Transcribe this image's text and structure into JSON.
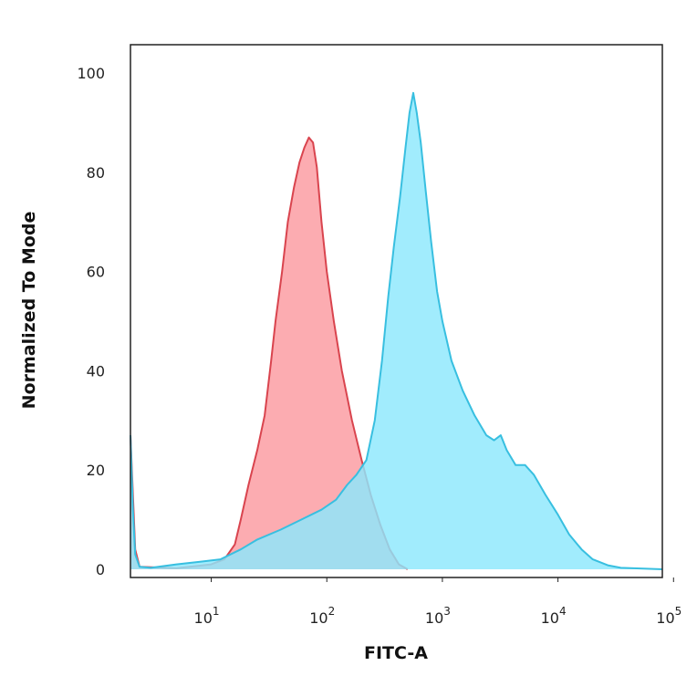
{
  "chart_data": {
    "type": "area",
    "title": "",
    "xlabel": "FITC-A",
    "ylabel": "Normalized To Mode",
    "x_scale": "log",
    "xlim": [
      2,
      80000
    ],
    "ylim": [
      0,
      100
    ],
    "grid": false,
    "legend": "none",
    "x_ticks": [
      {
        "value": 10,
        "base": "10",
        "exp": "1"
      },
      {
        "value": 100,
        "base": "10",
        "exp": "2"
      },
      {
        "value": 1000,
        "base": "10",
        "exp": "3"
      },
      {
        "value": 10000,
        "base": "10",
        "exp": "4"
      },
      {
        "value": 100000,
        "base": "10",
        "exp": "5"
      }
    ],
    "y_ticks": [
      {
        "value": 0,
        "label": "0"
      },
      {
        "value": 20,
        "label": "20"
      },
      {
        "value": 40,
        "label": "40"
      },
      {
        "value": 60,
        "label": "60"
      },
      {
        "value": 80,
        "label": "80"
      },
      {
        "value": 100,
        "label": "100"
      }
    ],
    "series": [
      {
        "fill": "#fb9aa0",
        "stroke": "#d9444e",
        "points": [
          [
            2.0,
            27
          ],
          [
            2.1,
            15
          ],
          [
            2.2,
            4
          ],
          [
            2.4,
            0.5
          ],
          [
            5,
            0.2
          ],
          [
            10,
            1
          ],
          [
            13,
            2
          ],
          [
            16,
            5
          ],
          [
            18,
            10
          ],
          [
            21,
            17
          ],
          [
            25,
            24
          ],
          [
            29,
            31
          ],
          [
            33,
            42
          ],
          [
            36,
            50
          ],
          [
            41,
            60
          ],
          [
            46,
            70
          ],
          [
            52,
            77
          ],
          [
            58,
            82
          ],
          [
            64,
            85
          ],
          [
            70,
            87
          ],
          [
            76,
            86
          ],
          [
            82,
            81
          ],
          [
            90,
            70
          ],
          [
            100,
            60
          ],
          [
            115,
            50
          ],
          [
            135,
            40
          ],
          [
            165,
            30
          ],
          [
            200,
            22
          ],
          [
            240,
            15
          ],
          [
            290,
            9
          ],
          [
            350,
            4
          ],
          [
            420,
            1
          ],
          [
            500,
            0
          ]
        ]
      },
      {
        "fill": "#8ce8fd",
        "stroke": "#38bfe0",
        "points": [
          [
            2.0,
            27
          ],
          [
            2.1,
            12
          ],
          [
            2.2,
            3
          ],
          [
            2.4,
            0.5
          ],
          [
            3,
            0.3
          ],
          [
            5,
            1
          ],
          [
            8,
            1.5
          ],
          [
            12,
            2
          ],
          [
            18,
            4
          ],
          [
            25,
            6
          ],
          [
            40,
            8
          ],
          [
            60,
            10
          ],
          [
            90,
            12
          ],
          [
            120,
            14
          ],
          [
            150,
            17
          ],
          [
            180,
            19
          ],
          [
            220,
            22
          ],
          [
            260,
            30
          ],
          [
            300,
            42
          ],
          [
            340,
            55
          ],
          [
            380,
            65
          ],
          [
            430,
            75
          ],
          [
            480,
            85
          ],
          [
            520,
            92
          ],
          [
            560,
            96
          ],
          [
            600,
            92
          ],
          [
            650,
            86
          ],
          [
            720,
            76
          ],
          [
            800,
            66
          ],
          [
            900,
            56
          ],
          [
            1000,
            50
          ],
          [
            1200,
            42
          ],
          [
            1500,
            36
          ],
          [
            1900,
            31
          ],
          [
            2400,
            27
          ],
          [
            2800,
            26
          ],
          [
            3200,
            27
          ],
          [
            3600,
            24
          ],
          [
            4300,
            21
          ],
          [
            5200,
            21
          ],
          [
            6200,
            19
          ],
          [
            7800,
            15
          ],
          [
            10000,
            11
          ],
          [
            12500,
            7
          ],
          [
            16000,
            4
          ],
          [
            20000,
            2
          ],
          [
            27000,
            0.8
          ],
          [
            35000,
            0.3
          ],
          [
            80000,
            0
          ]
        ]
      }
    ]
  }
}
